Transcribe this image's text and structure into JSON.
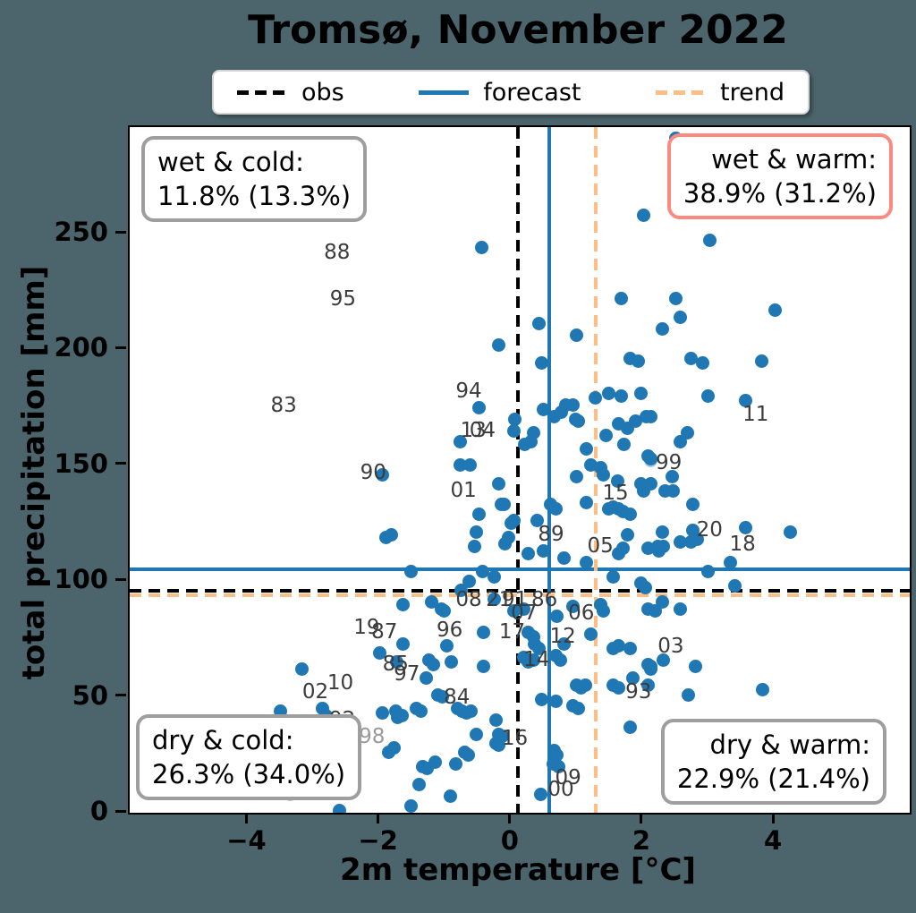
{
  "title": "Tromsø, November 2022",
  "legend": {
    "items": [
      {
        "label": "obs",
        "style": "dashed",
        "color": "#000000"
      },
      {
        "label": "forecast",
        "style": "solid",
        "color": "#1f77b4"
      },
      {
        "label": "trend",
        "style": "dashed",
        "color": "#fdbe85"
      }
    ]
  },
  "quadrants": {
    "wet_cold": {
      "line1": "wet & cold:",
      "line2": "11.8% (13.3%)"
    },
    "wet_warm": {
      "line1": "wet & warm:",
      "line2": "38.9% (31.2%)"
    },
    "dry_cold": {
      "line1": "dry & cold:",
      "line2": "26.3% (34.0%)"
    },
    "dry_warm": {
      "line1": "dry & warm:",
      "line2": "22.9% (21.4%)"
    }
  },
  "chart_data": {
    "type": "scatter",
    "title": "Tromsø, November 2022",
    "xlabel": "2m temperature [°C]",
    "ylabel": "total precipitation [mm]",
    "xlim": [
      -5.8,
      6.05
    ],
    "ylim": [
      0,
      296
    ],
    "xticks": [
      -4,
      -2,
      0,
      2,
      4
    ],
    "yticks": [
      0,
      50,
      100,
      150,
      200,
      250
    ],
    "grid": false,
    "point_color": "#1f77b4",
    "faded_point_color": "rgba(31,119,180,0.42)",
    "reference_lines": {
      "obs": {
        "temp": 0.1,
        "precip": 96,
        "color": "#000000",
        "style": "dashed"
      },
      "forecast": {
        "temp": 0.57,
        "precip": 105,
        "color": "#1f77b4",
        "style": "solid"
      },
      "trend": {
        "temp": 1.28,
        "precip": 94,
        "color": "#fdbe85",
        "style": "dashed"
      }
    },
    "points": [
      [
        2.01,
        258
      ],
      [
        -0.45,
        244
      ],
      [
        1.67,
        222
      ],
      [
        0.42,
        211
      ],
      [
        0.99,
        206
      ],
      [
        -0.19,
        202
      ],
      [
        0.46,
        194
      ],
      [
        1.81,
        196
      ],
      [
        1.92,
        195
      ],
      [
        1.27,
        179
      ],
      [
        1.48,
        181
      ],
      [
        1.67,
        180
      ],
      [
        1.97,
        181
      ],
      [
        -0.49,
        175
      ],
      [
        0.48,
        174
      ],
      [
        0.65,
        171
      ],
      [
        0.76,
        173
      ],
      [
        0.83,
        176
      ],
      [
        0.94,
        176
      ],
      [
        0.97,
        170
      ],
      [
        1.01,
        169
      ],
      [
        0.05,
        170
      ],
      [
        0.04,
        165
      ],
      [
        0.29,
        160
      ],
      [
        0.34,
        164
      ],
      [
        0.2,
        159
      ],
      [
        1.62,
        168
      ],
      [
        1.76,
        166
      ],
      [
        1.88,
        169
      ],
      [
        2.05,
        171
      ],
      [
        1.44,
        163
      ],
      [
        1.71,
        159
      ],
      [
        2.08,
        154
      ],
      [
        1.14,
        157
      ],
      [
        1.2,
        150
      ],
      [
        1.35,
        149
      ],
      [
        -0.78,
        160
      ],
      [
        -0.78,
        150
      ],
      [
        -0.63,
        150
      ],
      [
        2.5,
        291
      ],
      [
        3.01,
        247
      ],
      [
        2.49,
        222
      ],
      [
        2.56,
        214
      ],
      [
        2.29,
        209
      ],
      [
        4.01,
        217
      ],
      [
        2.73,
        196
      ],
      [
        2.91,
        194
      ],
      [
        3.8,
        195
      ],
      [
        2.98,
        180
      ],
      [
        3.56,
        178
      ],
      [
        2.12,
        171
      ],
      [
        2.67,
        164
      ],
      [
        2.56,
        160
      ],
      [
        2.12,
        153
      ],
      [
        -1.96,
        146
      ],
      [
        -1.9,
        119
      ],
      [
        -2.0,
        69
      ],
      [
        -3.18,
        62
      ],
      [
        -3.51,
        44
      ],
      [
        -2.87,
        45
      ],
      [
        -2.82,
        42
      ],
      [
        -1.86,
        26
      ],
      [
        -2.61,
        1
      ],
      [
        -1.96,
        43
      ],
      [
        -1.73,
        41
      ],
      [
        -1.78,
        28
      ],
      [
        -0.19,
        142
      ],
      [
        0.99,
        145
      ],
      [
        1.4,
        146
      ],
      [
        1.61,
        143
      ],
      [
        1.96,
        142
      ],
      [
        2.01,
        139
      ],
      [
        -0.16,
        133
      ],
      [
        -0.11,
        133
      ],
      [
        0.6,
        133
      ],
      [
        0.67,
        131
      ],
      [
        1.14,
        134
      ],
      [
        1.48,
        131
      ],
      [
        1.55,
        132
      ],
      [
        1.63,
        131
      ],
      [
        1.7,
        130
      ],
      [
        1.81,
        129
      ],
      [
        -0.5,
        129
      ],
      [
        0.03,
        126
      ],
      [
        -0.01,
        125
      ],
      [
        0.39,
        126
      ],
      [
        -0.53,
        121
      ],
      [
        -0.05,
        119
      ],
      [
        -0.1,
        116
      ],
      [
        0.49,
        113
      ],
      [
        0.26,
        112
      ],
      [
        -0.56,
        115
      ],
      [
        1.14,
        108
      ],
      [
        0.8,
        110
      ],
      [
        1.63,
        112
      ],
      [
        1.7,
        114
      ],
      [
        2.08,
        114
      ],
      [
        1.76,
        120
      ],
      [
        -1.82,
        120
      ],
      [
        -1.52,
        104
      ],
      [
        -0.44,
        104
      ],
      [
        -0.26,
        102
      ],
      [
        -0.64,
        100
      ],
      [
        1.54,
        102
      ],
      [
        1.96,
        99
      ],
      [
        2.03,
        97
      ],
      [
        -1.65,
        90
      ],
      [
        -1.21,
        91
      ],
      [
        -1.07,
        88
      ],
      [
        -1.02,
        87
      ],
      [
        -0.76,
        96
      ],
      [
        -0.26,
        92
      ],
      [
        0.18,
        88
      ],
      [
        0.03,
        87
      ],
      [
        0.69,
        85
      ],
      [
        0.94,
        89
      ],
      [
        1.35,
        90
      ],
      [
        1.4,
        87
      ],
      [
        2.08,
        88
      ],
      [
        -1.65,
        73
      ],
      [
        -0.98,
        72
      ],
      [
        -0.42,
        78
      ],
      [
        0.26,
        78
      ],
      [
        0.33,
        76
      ],
      [
        0.35,
        73
      ],
      [
        0.42,
        71
      ],
      [
        0.8,
        73
      ],
      [
        1.2,
        77
      ],
      [
        1.55,
        71
      ],
      [
        1.63,
        72
      ],
      [
        1.8,
        71
      ],
      [
        2.08,
        64
      ],
      [
        2.11,
        62
      ],
      [
        -1.74,
        65
      ],
      [
        -1.25,
        66
      ],
      [
        -1.18,
        64
      ],
      [
        -0.91,
        65
      ],
      [
        -0.42,
        63
      ],
      [
        0.19,
        67
      ],
      [
        0.26,
        65
      ],
      [
        0.34,
        66
      ],
      [
        0.68,
        68
      ],
      [
        0.75,
        66
      ],
      [
        0.99,
        55
      ],
      [
        1.06,
        54
      ],
      [
        1.13,
        55
      ],
      [
        1.54,
        55
      ],
      [
        1.62,
        54
      ],
      [
        1.85,
        58
      ],
      [
        2.08,
        55
      ],
      [
        -1.76,
        44
      ],
      [
        -1.66,
        42
      ],
      [
        -1.44,
        45
      ],
      [
        -1.37,
        44
      ],
      [
        -1.29,
        58
      ],
      [
        -1.12,
        51
      ],
      [
        -1.05,
        50
      ],
      [
        -0.82,
        45
      ],
      [
        -0.75,
        44
      ],
      [
        -0.68,
        43
      ],
      [
        -0.61,
        44
      ],
      [
        -0.24,
        40
      ],
      [
        -0.19,
        34
      ],
      [
        -0.14,
        33
      ],
      [
        0.46,
        49
      ],
      [
        0.67,
        48
      ],
      [
        0.94,
        46
      ],
      [
        1.01,
        45
      ],
      [
        1.81,
        37
      ],
      [
        -1.35,
        20
      ],
      [
        -1.28,
        19
      ],
      [
        -1.16,
        22
      ],
      [
        -0.84,
        21
      ],
      [
        -0.71,
        26
      ],
      [
        -0.65,
        25
      ],
      [
        -0.54,
        34
      ],
      [
        -0.23,
        30
      ],
      [
        -0.19,
        29
      ],
      [
        0.65,
        27
      ],
      [
        0.69,
        25
      ],
      [
        0.63,
        21
      ],
      [
        0.71,
        20
      ],
      [
        0.44,
        8
      ],
      [
        -0.93,
        7
      ],
      [
        -1.41,
        12
      ],
      [
        -1.52,
        3
      ],
      [
        2.44,
        145
      ],
      [
        2.33,
        139
      ],
      [
        2.46,
        139
      ],
      [
        2.12,
        142
      ],
      [
        2.75,
        133
      ],
      [
        2.29,
        121
      ],
      [
        2.22,
        115
      ],
      [
        2.3,
        115
      ],
      [
        2.24,
        113
      ],
      [
        2.56,
        117
      ],
      [
        2.76,
        122
      ],
      [
        2.82,
        118
      ],
      [
        2.73,
        117
      ],
      [
        3.55,
        123
      ],
      [
        4.23,
        121
      ],
      [
        2.98,
        104
      ],
      [
        3.33,
        108
      ],
      [
        3.4,
        98
      ],
      [
        2.29,
        91
      ],
      [
        2.18,
        87
      ],
      [
        2.57,
        88
      ],
      [
        2.3,
        66
      ],
      [
        2.12,
        63
      ],
      [
        2.79,
        63
      ],
      [
        2.68,
        51
      ],
      [
        3.81,
        53
      ]
    ],
    "faded_points": [
      [
        3.01,
        278
      ],
      [
        2.71,
        262
      ],
      [
        2.55,
        290
      ],
      [
        -2.99,
        35
      ],
      [
        -4.59,
        24
      ],
      [
        -2.57,
        18
      ],
      [
        -3.36,
        8
      ],
      [
        2.12,
        152
      ]
    ],
    "year_labels": [
      {
        "text": "88",
        "t": -2.65,
        "p": 242
      },
      {
        "text": "95",
        "t": -2.56,
        "p": 222
      },
      {
        "text": "83",
        "t": -3.46,
        "p": 176
      },
      {
        "text": "94",
        "t": -0.65,
        "p": 182
      },
      {
        "text": "90",
        "t": -2.1,
        "p": 147
      },
      {
        "text": "13",
        "t": -0.58,
        "p": 165
      },
      {
        "text": "04",
        "t": -0.44,
        "p": 165
      },
      {
        "text": "01",
        "t": -0.73,
        "p": 139
      },
      {
        "text": "99",
        "t": 2.39,
        "p": 151
      },
      {
        "text": "15",
        "t": 1.58,
        "p": 138
      },
      {
        "text": "11",
        "t": 3.71,
        "p": 172
      },
      {
        "text": "89",
        "t": 0.6,
        "p": 120
      },
      {
        "text": "05",
        "t": 1.35,
        "p": 115
      },
      {
        "text": "20",
        "t": 3.01,
        "p": 122
      },
      {
        "text": "18",
        "t": 3.51,
        "p": 116
      },
      {
        "text": "08",
        "t": -0.65,
        "p": 92
      },
      {
        "text": "21",
        "t": -0.19,
        "p": 92
      },
      {
        "text": "91",
        "t": 0.05,
        "p": 92
      },
      {
        "text": "86",
        "t": 0.5,
        "p": 92
      },
      {
        "text": "07",
        "t": 0.19,
        "p": 86
      },
      {
        "text": "06",
        "t": 1.06,
        "p": 86
      },
      {
        "text": "19",
        "t": -2.2,
        "p": 80
      },
      {
        "text": "87",
        "t": -1.93,
        "p": 78
      },
      {
        "text": "96",
        "t": -0.94,
        "p": 79
      },
      {
        "text": "17",
        "t": 0.01,
        "p": 78
      },
      {
        "text": "12",
        "t": 0.78,
        "p": 76
      },
      {
        "text": "14",
        "t": 0.38,
        "p": 66
      },
      {
        "text": "03",
        "t": 2.42,
        "p": 72
      },
      {
        "text": "85",
        "t": -1.76,
        "p": 64
      },
      {
        "text": "97",
        "t": -1.59,
        "p": 60
      },
      {
        "text": "02",
        "t": -2.98,
        "p": 52
      },
      {
        "text": "10",
        "t": -2.6,
        "p": 56
      },
      {
        "text": "84",
        "t": -0.83,
        "p": 50
      },
      {
        "text": "93",
        "t": 1.93,
        "p": 52
      },
      {
        "text": "92",
        "t": -2.57,
        "p": 40
      },
      {
        "text": "98",
        "t": -2.12,
        "p": 33,
        "faded": true
      },
      {
        "text": "16",
        "t": 0.05,
        "p": 32
      },
      {
        "text": "09",
        "t": 0.86,
        "p": 15
      },
      {
        "text": "00",
        "t": 0.75,
        "p": 10
      }
    ]
  }
}
